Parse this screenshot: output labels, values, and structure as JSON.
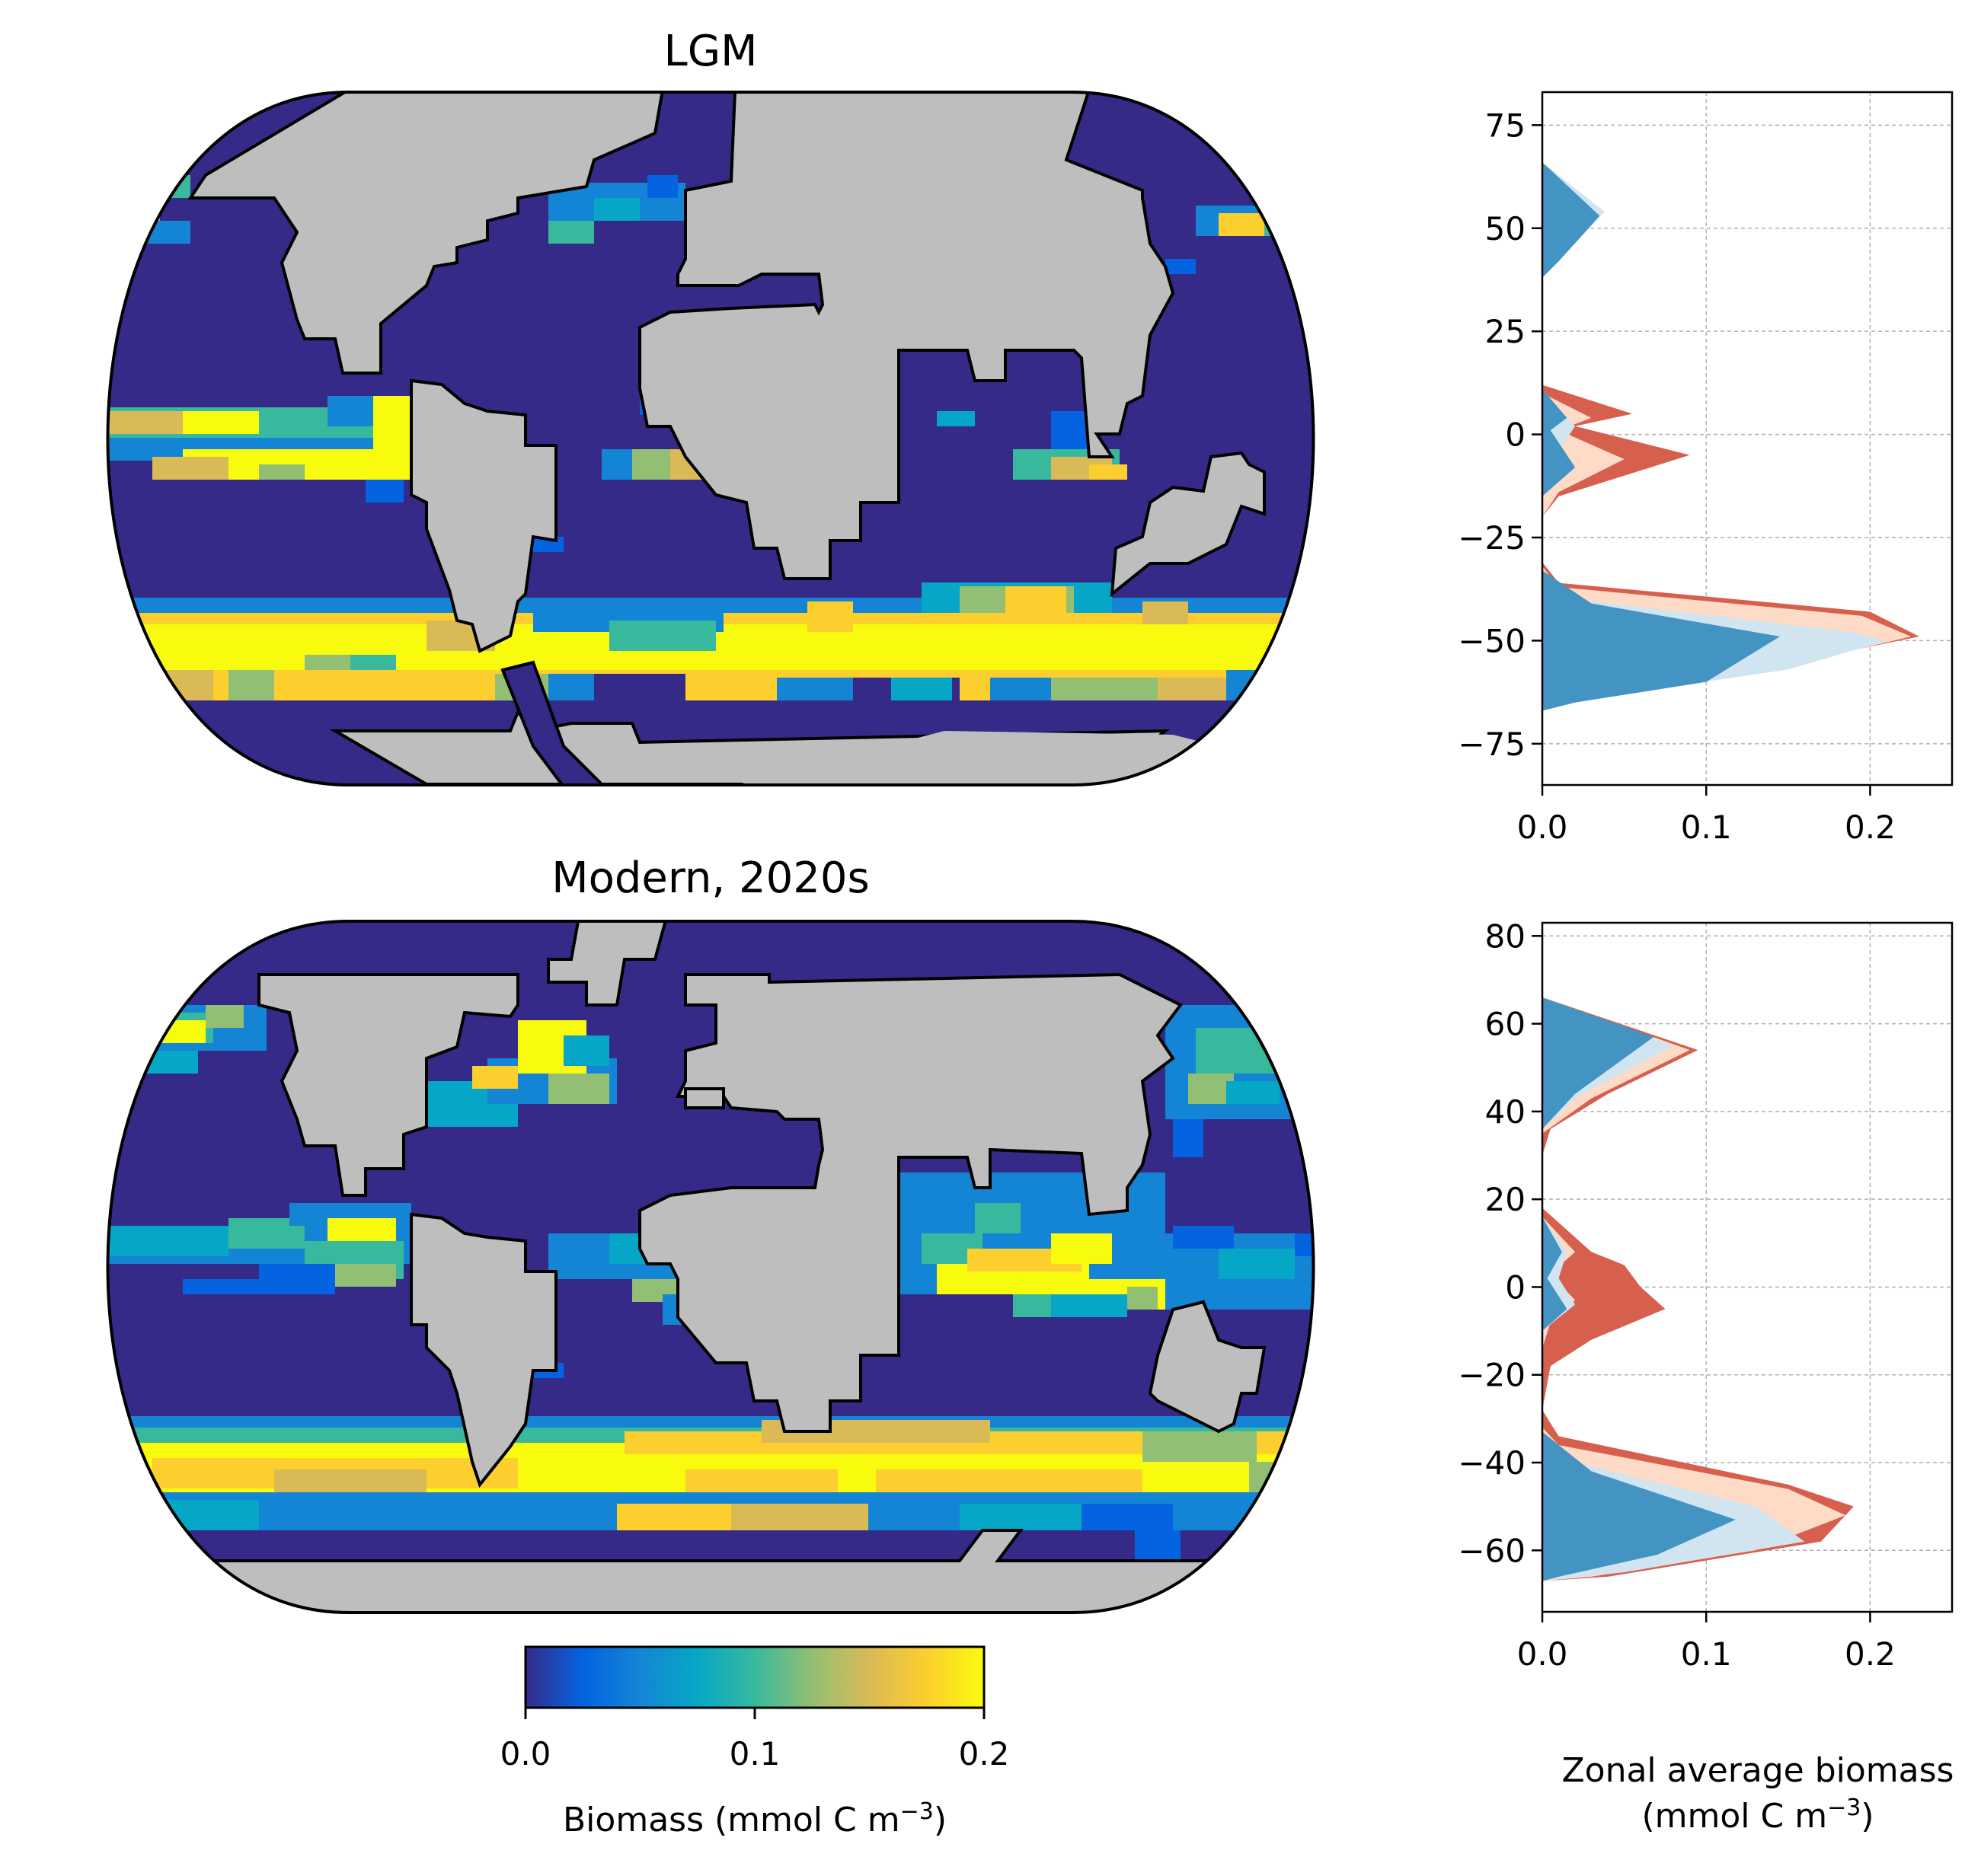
{
  "colors": {
    "ocean_low": "#352a87",
    "land": "#bebebe",
    "coast": "#000000",
    "blue_fill": "#4393c3",
    "light_blue_fill": "#d1e5f0",
    "red_fill": "#d6604d",
    "light_red_fill": "#fddbc7",
    "colormap": [
      "#352a87",
      "#0363e1",
      "#1485d4",
      "#06a7c6",
      "#38b99e",
      "#92bf73",
      "#d9ba56",
      "#fcce2e",
      "#f9fb0e"
    ]
  },
  "maps": {
    "top_title": "LGM",
    "bottom_title": "Modern, 2020s"
  },
  "colorbar": {
    "ticks": [
      "0.0",
      "0.1",
      "0.2"
    ],
    "label_main": "Biomass (mmol C m",
    "label_sup": "−3",
    "label_end": ")"
  },
  "profile_axes": {
    "xlabel_line1": "Zonal average biomass",
    "xlabel_line2_main": "(mmol C m",
    "xlabel_line2_sup": "−3",
    "xlabel_line2_end": ")"
  },
  "chart_data": [
    {
      "type": "area",
      "panel": "LGM zonal average",
      "xlim": [
        0,
        0.25
      ],
      "ylim": [
        -85,
        83
      ],
      "xticks": [
        0.0,
        0.1,
        0.2
      ],
      "xtick_labels": [
        "0.0",
        "0.1",
        "0.2"
      ],
      "yticks": [
        75,
        50,
        25,
        0,
        -25,
        -50,
        -75
      ],
      "ytick_labels": [
        "75",
        "50",
        "25",
        "0",
        "−25",
        "−50",
        "−75"
      ],
      "grid": true,
      "orientation": "horizontal",
      "series": [
        {
          "style": "red_fill",
          "points": [
            [
              0,
              12
            ],
            [
              0.055,
              5
            ],
            [
              0.02,
              2
            ],
            [
              0.09,
              -5
            ],
            [
              0.01,
              -15
            ],
            [
              0,
              -20
            ],
            [
              0,
              -31
            ],
            [
              0.01,
              -36
            ],
            [
              0.2,
              -43
            ],
            [
              0.23,
              -49
            ],
            [
              0.12,
              -58
            ],
            [
              0.02,
              -65
            ],
            [
              0,
              -67
            ]
          ]
        },
        {
          "style": "light_red_fill",
          "points": [
            [
              0,
              10
            ],
            [
              0.03,
              4
            ],
            [
              0.01,
              1
            ],
            [
              0.05,
              -6
            ],
            [
              0.01,
              -14
            ],
            [
              0,
              -20
            ],
            [
              0,
              -32
            ],
            [
              0.01,
              -37
            ],
            [
              0.195,
              -44
            ],
            [
              0.225,
              -49
            ],
            [
              0.13,
              -58
            ],
            [
              0.02,
              -65
            ],
            [
              0,
              -67
            ]
          ]
        },
        {
          "style": "light_blue_fill",
          "points": [
            [
              0,
              66
            ],
            [
              0.038,
              54
            ],
            [
              0.01,
              42
            ],
            [
              0,
              38
            ],
            [
              0,
              10
            ],
            [
              0.02,
              2
            ],
            [
              0.01,
              -4
            ],
            [
              0.02,
              -8
            ],
            [
              0,
              -15
            ],
            [
              0,
              -33
            ],
            [
              0.02,
              -40
            ],
            [
              0.19,
              -48
            ],
            [
              0.21,
              -50
            ],
            [
              0.15,
              -57
            ],
            [
              0.03,
              -64
            ],
            [
              0,
              -67
            ]
          ]
        },
        {
          "style": "blue_fill",
          "points": [
            [
              0,
              66
            ],
            [
              0.035,
              53
            ],
            [
              0.01,
              42
            ],
            [
              0,
              38
            ],
            [
              0,
              11
            ],
            [
              0.015,
              4
            ],
            [
              0.005,
              1
            ],
            [
              0.02,
              -8
            ],
            [
              0,
              -15
            ],
            [
              0,
              -33
            ],
            [
              0.03,
              -41
            ],
            [
              0.145,
              -49
            ],
            [
              0.1,
              -60
            ],
            [
              0.02,
              -65
            ],
            [
              0,
              -67
            ]
          ]
        }
      ]
    },
    {
      "type": "area",
      "panel": "Modern, 2020s zonal average",
      "xlim": [
        0,
        0.25
      ],
      "ylim": [
        -74,
        83
      ],
      "xticks": [
        0.0,
        0.1,
        0.2
      ],
      "xtick_labels": [
        "0.0",
        "0.1",
        "0.2"
      ],
      "yticks": [
        80,
        60,
        40,
        20,
        0,
        -20,
        -40,
        -60
      ],
      "ytick_labels": [
        "80",
        "60",
        "40",
        "20",
        "0",
        "−20",
        "−40",
        "−60"
      ],
      "grid": true,
      "orientation": "horizontal",
      "series": [
        {
          "style": "red_fill",
          "points": [
            [
              0,
              66
            ],
            [
              0.095,
              54
            ],
            [
              0.04,
              44
            ],
            [
              0.005,
              36
            ],
            [
              0,
              30
            ],
            [
              0,
              18
            ],
            [
              0.03,
              8
            ],
            [
              0.05,
              5
            ],
            [
              0.06,
              0
            ],
            [
              0.075,
              -5
            ],
            [
              0.03,
              -12
            ],
            [
              0.005,
              -18
            ],
            [
              0,
              -28
            ],
            [
              0.01,
              -34
            ],
            [
              0.15,
              -45
            ],
            [
              0.19,
              -50
            ],
            [
              0.17,
              -58
            ],
            [
              0.04,
              -66
            ],
            [
              0,
              -67
            ]
          ]
        },
        {
          "style": "light_red_fill",
          "points": [
            [
              0,
              66
            ],
            [
              0.09,
              54
            ],
            [
              0.03,
              43
            ],
            [
              0,
              35
            ],
            [
              0,
              16
            ],
            [
              0.02,
              8
            ],
            [
              0.005,
              3
            ],
            [
              0.02,
              -3
            ],
            [
              0.005,
              -8
            ],
            [
              0,
              -14
            ],
            [
              0,
              -32
            ],
            [
              0.01,
              -36
            ],
            [
              0.15,
              -46
            ],
            [
              0.185,
              -52
            ],
            [
              0.13,
              -60
            ],
            [
              0.03,
              -66
            ],
            [
              0,
              -67
            ]
          ]
        },
        {
          "style": "light_blue_fill",
          "points": [
            [
              0,
              66
            ],
            [
              0.08,
              55
            ],
            [
              0.02,
              43
            ],
            [
              0,
              36
            ],
            [
              0,
              16
            ],
            [
              0.015,
              8
            ],
            [
              0.01,
              2
            ],
            [
              0.02,
              -4
            ],
            [
              0,
              -10
            ],
            [
              0,
              -33
            ],
            [
              0.02,
              -40
            ],
            [
              0.13,
              -50
            ],
            [
              0.16,
              -58
            ],
            [
              0.05,
              -65
            ],
            [
              0,
              -67
            ]
          ]
        },
        {
          "style": "blue_fill",
          "points": [
            [
              0,
              66
            ],
            [
              0.068,
              57
            ],
            [
              0.02,
              44
            ],
            [
              0,
              36
            ],
            [
              0,
              16
            ],
            [
              0.012,
              8
            ],
            [
              0.003,
              2
            ],
            [
              0.015,
              -5
            ],
            [
              0,
              -10
            ],
            [
              0,
              -33
            ],
            [
              0.03,
              -42
            ],
            [
              0.118,
              -53
            ],
            [
              0.07,
              -61
            ],
            [
              0.01,
              -66
            ],
            [
              0,
              -67
            ]
          ]
        }
      ]
    }
  ]
}
